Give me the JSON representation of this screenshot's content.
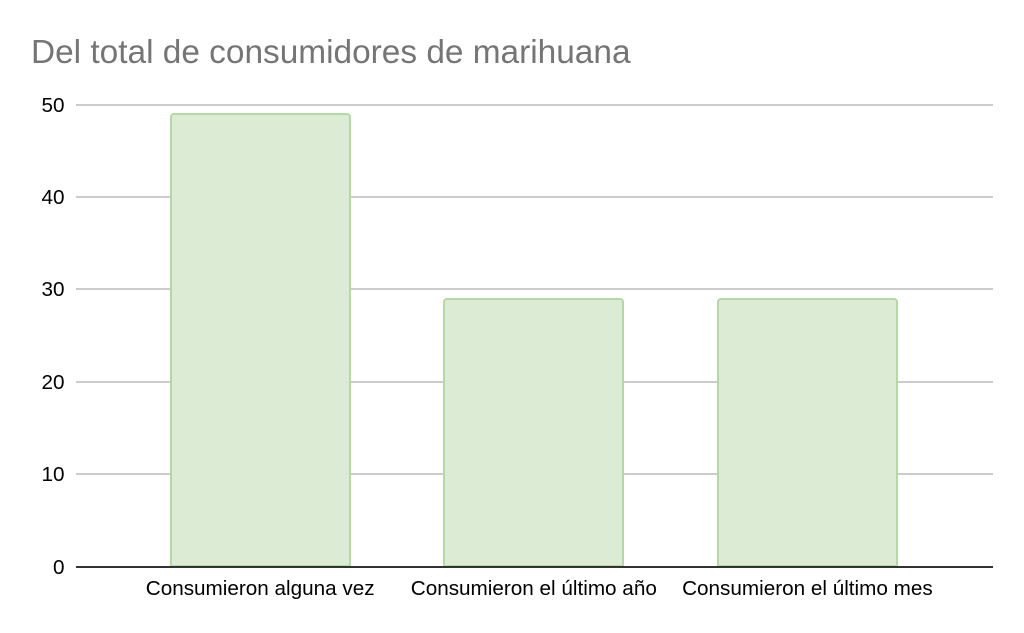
{
  "chart_data": {
    "type": "bar",
    "title": "Del total de consumidores de marihuana",
    "categories": [
      "Consumieron alguna vez",
      "Consumieron el último año",
      "Consumieron el último mes"
    ],
    "values": [
      49,
      29,
      29
    ],
    "yticks": [
      0,
      10,
      20,
      30,
      40,
      50
    ],
    "ylim": [
      0,
      50
    ],
    "xlabel": "",
    "ylabel": "",
    "grid": "horizontal",
    "legend": "none",
    "colors": {
      "background": "#ffffff",
      "title": "#757575",
      "label": "#000000",
      "gridline": "#cccccc",
      "axis_line": "#333333",
      "bar_fill": "#dbebd4",
      "bar_border": "#b6d7a8"
    }
  }
}
